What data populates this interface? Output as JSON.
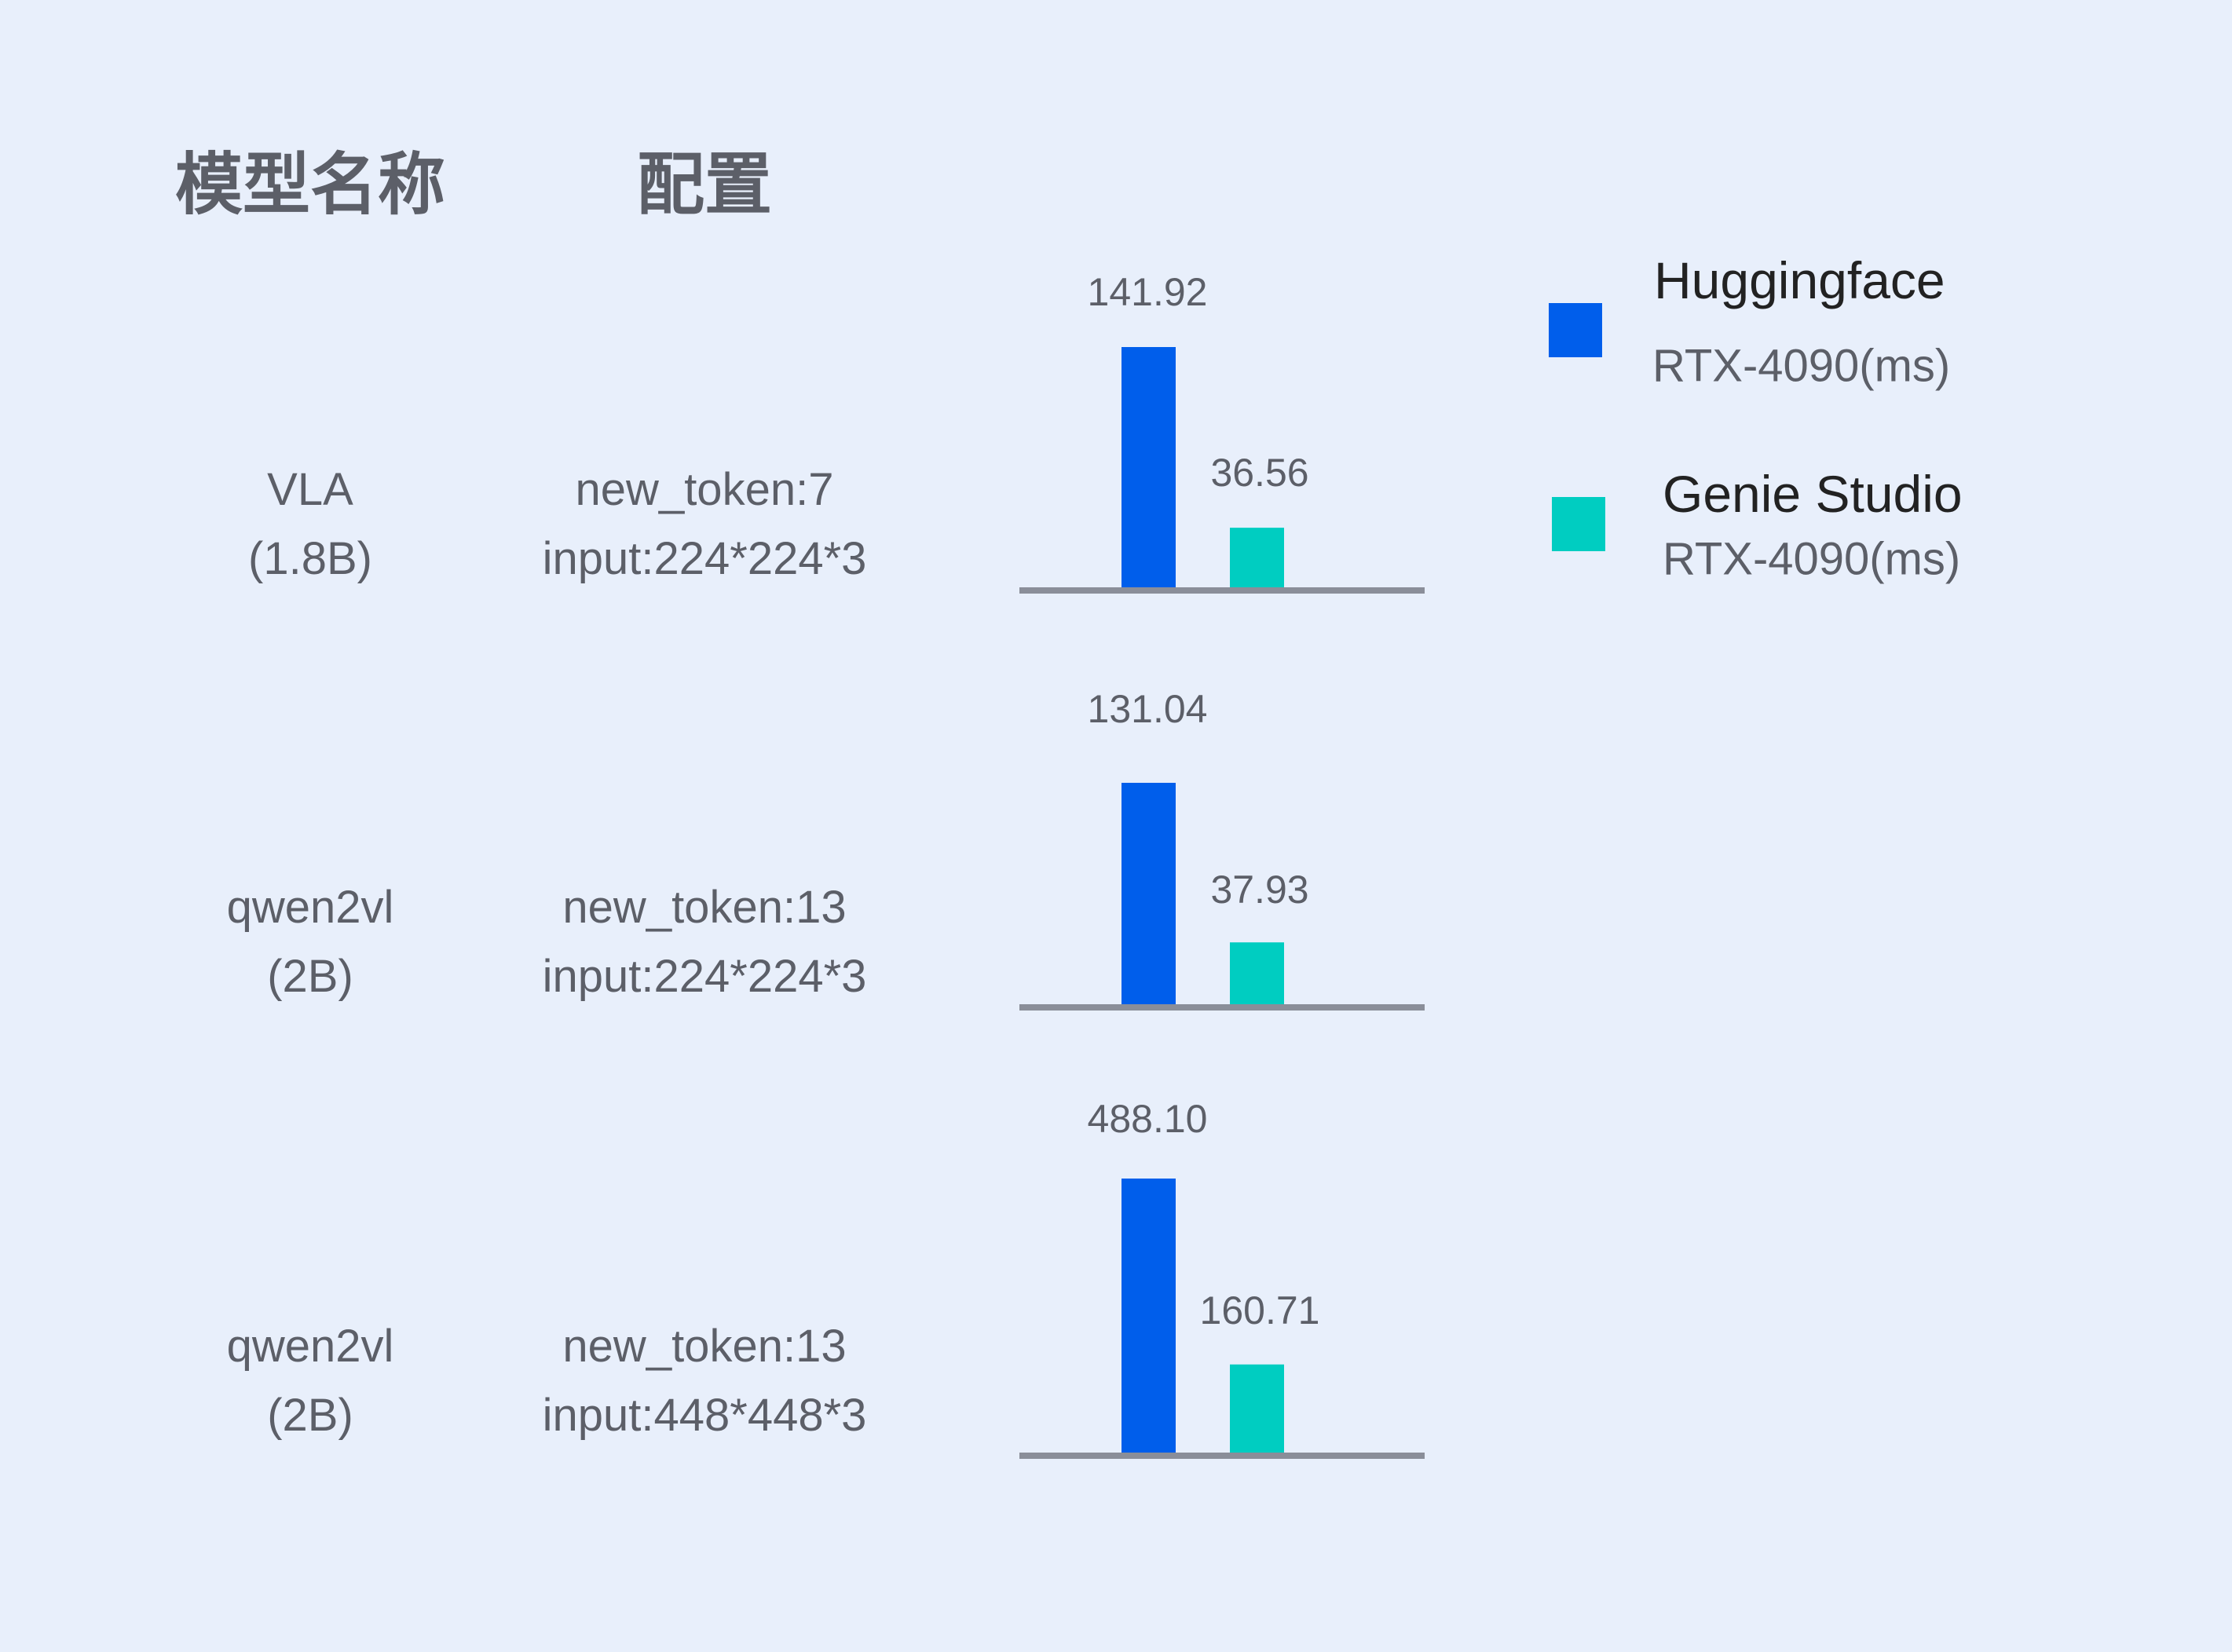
{
  "headers": {
    "model": "模型名称",
    "config": "配置"
  },
  "legend": [
    {
      "name": "Huggingface",
      "sub": "RTX-4090(ms)",
      "color": "#005eeb"
    },
    {
      "name": "Genie Studio",
      "sub": "RTX-4090(ms)",
      "color": "#00cdc1"
    }
  ],
  "axis_color": "#8a8e99",
  "chart_data": {
    "type": "bar",
    "title": "",
    "xlabel": "",
    "ylabel": "",
    "grid": false,
    "legend_position": "top-right",
    "categories": [
      {
        "model": [
          "VLA",
          "(1.8B)"
        ],
        "config": [
          "new_token:7",
          "input:224*224*3"
        ]
      },
      {
        "model": [
          "qwen2vl",
          "(2B)"
        ],
        "config": [
          "new_token:13",
          "input:224*224*3"
        ]
      },
      {
        "model": [
          "qwen2vl",
          "(2B)"
        ],
        "config": [
          "new_token:13",
          "input:448*448*3"
        ]
      }
    ],
    "series": [
      {
        "name": "Huggingface RTX-4090(ms)",
        "values": [
          141.92,
          131.04,
          488.1
        ],
        "labels": [
          "141.92",
          "131.04",
          "488.10"
        ]
      },
      {
        "name": "Genie Studio RTX-4090(ms)",
        "values": [
          36.56,
          37.93,
          160.71
        ],
        "labels": [
          "36.56",
          "37.93",
          "160.71"
        ]
      }
    ]
  }
}
